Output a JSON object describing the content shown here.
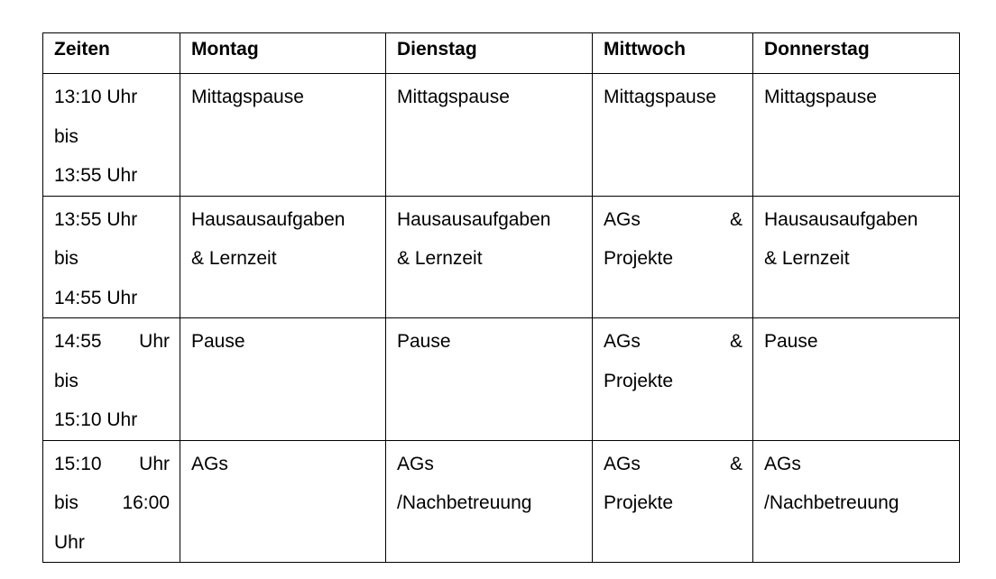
{
  "headers": [
    "Zeiten",
    "Montag",
    "Dienstag",
    "Mittwoch",
    "Donnerstag"
  ],
  "rows": [
    {
      "time": [
        "13:10 Uhr",
        "bis",
        "13:55 Uhr"
      ],
      "montag": [
        "Mittagspause"
      ],
      "dienstag": [
        "Mittagspause"
      ],
      "mittwoch": [
        "Mittagspause"
      ],
      "donnerstag": [
        "Mittagspause"
      ]
    },
    {
      "time": [
        "13:55 Uhr",
        "bis",
        "14:55 Uhr"
      ],
      "montag": [
        "Hausausaufgaben",
        "& Lernzeit"
      ],
      "dienstag": [
        "Hausausaufgaben",
        "& Lernzeit"
      ],
      "mittwoch": [
        "AGs &",
        "Projekte"
      ],
      "donnerstag": [
        "Hausausaufgaben",
        "& Lernzeit"
      ]
    },
    {
      "time": [
        "14:55 Uhr",
        "bis",
        "15:10 Uhr"
      ],
      "montag": [
        "Pause"
      ],
      "dienstag": [
        "Pause"
      ],
      "mittwoch": [
        "AGs &",
        "Projekte"
      ],
      "donnerstag": [
        "Pause"
      ]
    },
    {
      "time": [
        "15:10 Uhr",
        "bis 16:00",
        "Uhr"
      ],
      "montag": [
        "AGs"
      ],
      "dienstag": [
        "AGs",
        "/Nachbetreuung"
      ],
      "mittwoch": [
        "AGs &",
        "Projekte"
      ],
      "donnerstag": [
        "AGs",
        "/Nachbetreuung"
      ]
    }
  ]
}
